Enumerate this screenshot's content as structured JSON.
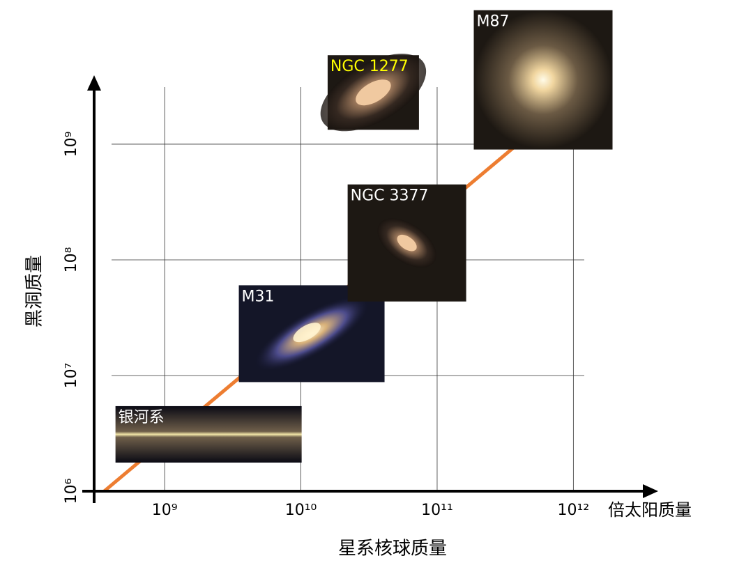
{
  "chart_data": {
    "type": "scatter",
    "x_label": "星系核球质量",
    "x_unit": "倍太阳质量",
    "y_label": "黑洞质量",
    "log_x": true,
    "log_y": true,
    "grid": true,
    "xlim": [
      300000000,
      4000000000000
    ],
    "ylim": [
      1000000,
      4000000000
    ],
    "xticks": [
      {
        "value": 1000000000,
        "label": "10⁹"
      },
      {
        "value": 10000000000,
        "label": "10¹⁰"
      },
      {
        "value": 100000000000,
        "label": "10¹¹"
      },
      {
        "value": 1000000000000,
        "label": "10¹²"
      }
    ],
    "yticks": [
      {
        "value": 1000000,
        "label": "10⁶"
      },
      {
        "value": 10000000,
        "label": "10⁷"
      },
      {
        "value": 100000000,
        "label": "10⁸"
      },
      {
        "value": 1000000000,
        "label": "10⁹"
      }
    ],
    "line": {
      "color": "#ed7d31",
      "x": [
        360000000,
        370000000000
      ],
      "y": [
        1000000,
        950000000
      ]
    },
    "points": [
      {
        "name": "银河系",
        "x": 2100000000,
        "y": 3100000,
        "label_color": "#ffffff"
      },
      {
        "name": "M31",
        "x": 12000000000,
        "y": 23000000,
        "label_color": "#ffffff"
      },
      {
        "name": "NGC 3377",
        "x": 60000000000,
        "y": 140000000,
        "label_color": "#ffffff"
      },
      {
        "name": "NGC 1277",
        "x": 34000000000,
        "y": 2800000000,
        "label_color": "#ffff00"
      },
      {
        "name": "M87",
        "x": 600000000000,
        "y": 3600000000,
        "label_color": "#ffffff"
      }
    ]
  }
}
